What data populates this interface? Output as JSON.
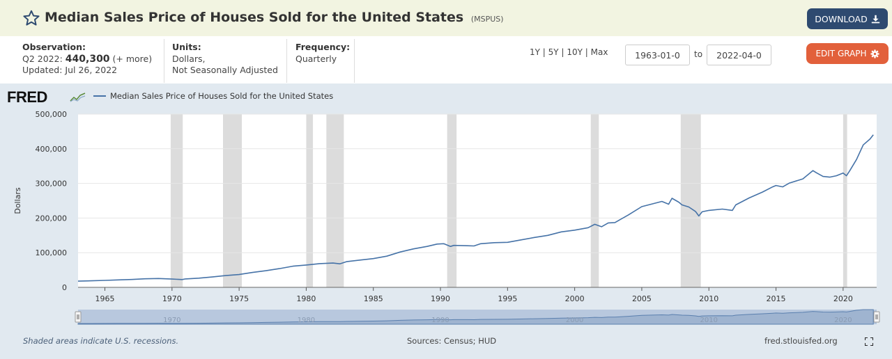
{
  "header": {
    "title": "Median Sales Price of Houses Sold for the United States",
    "series_id": "(MSPUS)",
    "download_label": "DOWNLOAD"
  },
  "meta": {
    "observation_label": "Observation:",
    "observation_period": "Q2 2022:",
    "observation_value": "440,300",
    "observation_more": "(+ more)",
    "updated": "Updated: Jul 26, 2022",
    "units_label": "Units:",
    "units_line1": "Dollars,",
    "units_line2": "Not Seasonally Adjusted",
    "frequency_label": "Frequency:",
    "frequency_value": "Quarterly"
  },
  "controls": {
    "range_1y": "1Y",
    "range_5y": "5Y",
    "range_10y": "10Y",
    "range_max": "Max",
    "separator": "|",
    "start_date": "1963-01-0",
    "to_label": "to",
    "end_date": "2022-04-0",
    "edit_label": "EDIT GRAPH"
  },
  "icons": {
    "star": "star-outline-icon",
    "download": "download-icon",
    "edit": "gear-icon",
    "fullscreen": "fullscreen-icon"
  },
  "colors": {
    "series": "#4572a7",
    "recession": "#dcdcdc",
    "download_button": "#2e4a70",
    "edit_button": "#e2603b",
    "panel": "#e1e9f0",
    "title_bar": "#f2f4e1"
  },
  "footer": {
    "note": "Shaded areas indicate U.S. recessions.",
    "sources": "Sources: Census; HUD",
    "site": "fred.stlouisfed.org"
  },
  "chart_data": {
    "type": "line",
    "title": "",
    "logo": "FRED",
    "xlabel": "",
    "ylabel": "Dollars",
    "xlim": [
      1963.0,
      2022.5
    ],
    "ylim": [
      0,
      500000
    ],
    "y_ticks": [
      0,
      100000,
      200000,
      300000,
      400000,
      500000
    ],
    "y_tick_labels": [
      "0",
      "100,000",
      "200,000",
      "300,000",
      "400,000",
      "500,000"
    ],
    "x_ticks": [
      1965,
      1970,
      1975,
      1980,
      1985,
      1990,
      1995,
      2000,
      2005,
      2010,
      2015,
      2020
    ],
    "navigator_ticks": [
      1970,
      1980,
      1990,
      2000,
      2010,
      2020
    ],
    "grid": true,
    "legend_position": "top-left",
    "recessions": [
      [
        1969.9,
        1970.8
      ],
      [
        1973.8,
        1975.2
      ],
      [
        1980.0,
        1980.5
      ],
      [
        1981.5,
        1982.8
      ],
      [
        1990.5,
        1991.2
      ],
      [
        2001.2,
        2001.8
      ],
      [
        2007.9,
        2009.4
      ],
      [
        2020.0,
        2020.3
      ]
    ],
    "series": [
      {
        "name": "Median Sales Price of Houses Sold for the United States",
        "points": [
          [
            1963.0,
            17800
          ],
          [
            1964.0,
            18900
          ],
          [
            1965.0,
            20000
          ],
          [
            1966.0,
            21400
          ],
          [
            1967.0,
            22700
          ],
          [
            1968.0,
            24700
          ],
          [
            1969.0,
            25600
          ],
          [
            1970.0,
            23900
          ],
          [
            1970.75,
            22500
          ],
          [
            1971.0,
            24300
          ],
          [
            1972.0,
            26500
          ],
          [
            1973.0,
            30000
          ],
          [
            1974.0,
            34000
          ],
          [
            1975.0,
            37000
          ],
          [
            1976.0,
            43000
          ],
          [
            1977.0,
            48000
          ],
          [
            1978.0,
            54000
          ],
          [
            1979.0,
            61000
          ],
          [
            1980.0,
            64500
          ],
          [
            1981.0,
            68500
          ],
          [
            1982.0,
            70000
          ],
          [
            1982.5,
            67800
          ],
          [
            1983.0,
            74000
          ],
          [
            1984.0,
            78700
          ],
          [
            1985.0,
            83000
          ],
          [
            1986.0,
            90000
          ],
          [
            1987.0,
            102000
          ],
          [
            1988.0,
            111000
          ],
          [
            1989.0,
            118000
          ],
          [
            1989.75,
            125000
          ],
          [
            1990.25,
            126000
          ],
          [
            1990.75,
            118000
          ],
          [
            1991.0,
            121000
          ],
          [
            1992.0,
            120000
          ],
          [
            1992.5,
            119500
          ],
          [
            1993.0,
            126000
          ],
          [
            1994.0,
            129000
          ],
          [
            1995.0,
            130000
          ],
          [
            1996.0,
            137000
          ],
          [
            1997.0,
            144000
          ],
          [
            1998.0,
            150000
          ],
          [
            1999.0,
            160000
          ],
          [
            2000.0,
            165000
          ],
          [
            2001.0,
            172000
          ],
          [
            2001.5,
            182000
          ],
          [
            2002.0,
            175000
          ],
          [
            2002.5,
            186000
          ],
          [
            2003.0,
            187000
          ],
          [
            2004.0,
            209000
          ],
          [
            2005.0,
            233000
          ],
          [
            2006.0,
            243000
          ],
          [
            2006.5,
            248000
          ],
          [
            2007.0,
            240000
          ],
          [
            2007.25,
            257000
          ],
          [
            2007.75,
            246000
          ],
          [
            2008.0,
            238000
          ],
          [
            2008.5,
            232000
          ],
          [
            2009.0,
            219000
          ],
          [
            2009.25,
            206000
          ],
          [
            2009.5,
            218000
          ],
          [
            2010.0,
            222000
          ],
          [
            2011.0,
            226000
          ],
          [
            2011.75,
            222000
          ],
          [
            2012.0,
            238000
          ],
          [
            2013.0,
            258000
          ],
          [
            2014.0,
            275000
          ],
          [
            2014.75,
            290000
          ],
          [
            2015.0,
            294000
          ],
          [
            2015.5,
            290000
          ],
          [
            2016.0,
            301000
          ],
          [
            2017.0,
            313000
          ],
          [
            2017.75,
            337000
          ],
          [
            2018.0,
            331000
          ],
          [
            2018.5,
            320000
          ],
          [
            2019.0,
            318000
          ],
          [
            2019.5,
            322000
          ],
          [
            2020.0,
            330000
          ],
          [
            2020.25,
            322000
          ],
          [
            2020.5,
            337000
          ],
          [
            2021.0,
            369000
          ],
          [
            2021.5,
            411000
          ],
          [
            2022.0,
            428000
          ],
          [
            2022.25,
            440300
          ]
        ]
      }
    ]
  }
}
